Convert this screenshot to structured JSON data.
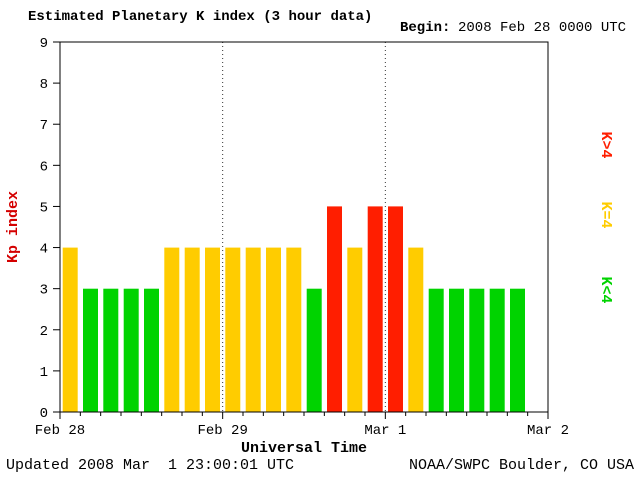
{
  "title": "Estimated Planetary K index (3 hour data)",
  "begin": {
    "label": "Begin:",
    "value": "2008 Feb 28 0000 UTC"
  },
  "footer": {
    "updated": "Updated 2008 Mar  1 23:00:01 UTC",
    "source": "NOAA/SWPC Boulder, CO USA"
  },
  "chart_data": {
    "type": "bar",
    "title": "Estimated Planetary K index (3 hour data)",
    "xlabel": "Universal Time",
    "ylabel": "Kp index",
    "ylim": [
      0,
      9
    ],
    "y_ticks": [
      0,
      1,
      2,
      3,
      4,
      5,
      6,
      7,
      8,
      9
    ],
    "x_day_labels": [
      "Feb 28",
      "Feb 29",
      "Mar 1",
      "Mar 2"
    ],
    "days": 3,
    "bars_per_day": 8,
    "hours_per_bar": 3,
    "values": [
      4,
      3,
      3,
      3,
      3,
      4,
      4,
      4,
      4,
      4,
      4,
      4,
      3,
      5,
      4,
      5,
      5,
      4,
      3,
      3,
      3,
      3,
      3
    ],
    "color_rules": {
      "below_4": "#00d300",
      "equal_4": "#ffcc00",
      "above_4": "#ff1e00"
    },
    "legend": [
      {
        "label": "K>4",
        "color": "#ff1e00"
      },
      {
        "label": "K=4",
        "color": "#ffcc00"
      },
      {
        "label": "K<4",
        "color": "#00d300"
      }
    ],
    "grid": "dotted vertical lines at interior day boundaries",
    "legend_position": "right, rotated 90deg"
  }
}
